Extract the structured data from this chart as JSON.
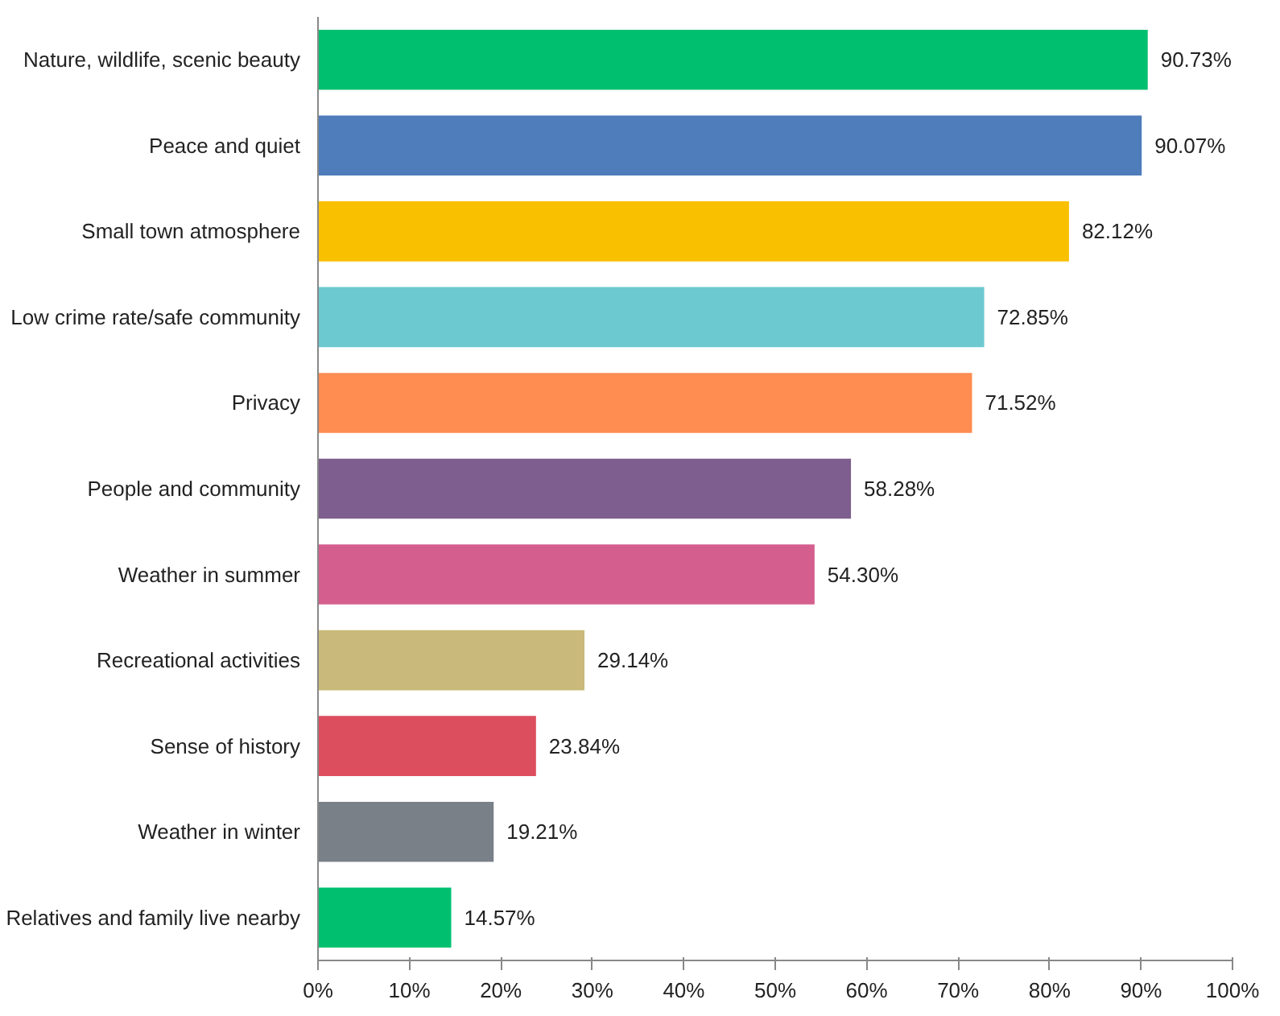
{
  "chart_data": {
    "type": "bar",
    "orientation": "horizontal",
    "categories": [
      "Nature, wildlife, scenic beauty",
      "Peace and quiet",
      "Small town atmosphere",
      "Low crime rate/safe community",
      "Privacy",
      "People and community",
      "Weather in summer",
      "Recreational activities",
      "Sense of history",
      "Weather in winter",
      "Relatives and family live nearby"
    ],
    "values": [
      90.73,
      90.07,
      82.12,
      72.85,
      71.52,
      58.28,
      54.3,
      29.14,
      23.84,
      19.21,
      14.57
    ],
    "colors": [
      "#00c070",
      "#4f7cba",
      "#f9c000",
      "#6cc9cf",
      "#ff8c50",
      "#7d5e8e",
      "#d45f8e",
      "#c9b97a",
      "#dc4e5e",
      "#7a8088",
      "#00c070"
    ],
    "value_labels": [
      "90.73%",
      "90.07%",
      "82.12%",
      "72.85%",
      "71.52%",
      "58.28%",
      "54.30%",
      "29.14%",
      "23.84%",
      "19.21%",
      "14.57%"
    ],
    "xlim": [
      0,
      100
    ],
    "xticks": [
      {
        "value": 0,
        "label": "0%"
      },
      {
        "value": 10,
        "label": "10%"
      },
      {
        "value": 20,
        "label": "20%"
      },
      {
        "value": 30,
        "label": "30%"
      },
      {
        "value": 40,
        "label": "40%"
      },
      {
        "value": 50,
        "label": "50%"
      },
      {
        "value": 60,
        "label": "60%"
      },
      {
        "value": 70,
        "label": "70%"
      },
      {
        "value": 80,
        "label": "80%"
      },
      {
        "value": 90,
        "label": "90%"
      },
      {
        "value": 100,
        "label": "100%"
      }
    ],
    "grid": false
  }
}
